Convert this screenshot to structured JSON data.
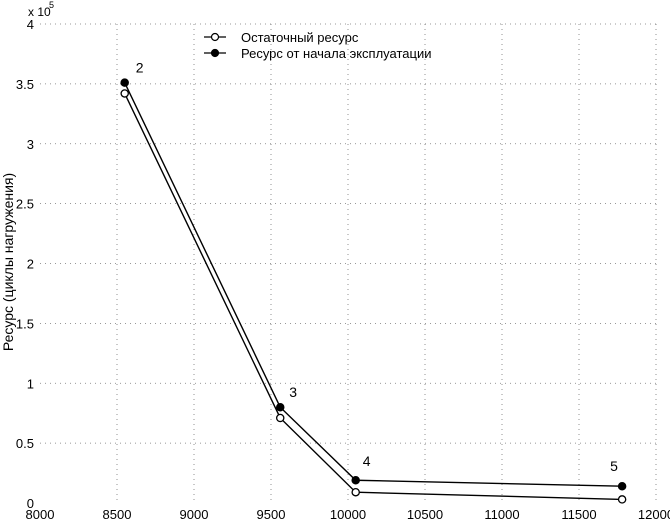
{
  "chart_data": {
    "type": "line",
    "xlim": [
      8000,
      12000
    ],
    "ylim": [
      0,
      400000
    ],
    "x_ticks": [
      "8000",
      "8500",
      "9000",
      "9500",
      "10000",
      "10500",
      "11000",
      "11500",
      "12000"
    ],
    "x_tick_values": [
      8000,
      8500,
      9000,
      9500,
      10000,
      10500,
      11000,
      11500,
      12000
    ],
    "y_ticks": [
      "0",
      "0.5",
      "1",
      "1.5",
      "2",
      "2.5",
      "3",
      "3.5",
      "4"
    ],
    "y_tick_values": [
      0,
      50000,
      100000,
      150000,
      200000,
      250000,
      300000,
      350000,
      400000
    ],
    "y_multiplier_base": "x 10",
    "y_multiplier_exp": "5",
    "ylabel": "Ресурс (циклы нагружения)",
    "xlabel": "",
    "title": "",
    "grid": "dotted",
    "legend_position": "top-center",
    "series": [
      {
        "name": "Остаточный ресурс",
        "marker": "open-circle",
        "color": "#000000",
        "x": [
          8550,
          9560,
          10050,
          11780
        ],
        "y": [
          342000,
          71000,
          9000,
          3000
        ]
      },
      {
        "name": "Ресурс от начала эксплуатации",
        "marker": "filled-circle",
        "color": "#000000",
        "x": [
          8550,
          9560,
          10050,
          11780
        ],
        "y": [
          351000,
          80000,
          19000,
          14000
        ]
      }
    ],
    "point_labels": [
      "2",
      "3",
      "4",
      "5"
    ]
  }
}
